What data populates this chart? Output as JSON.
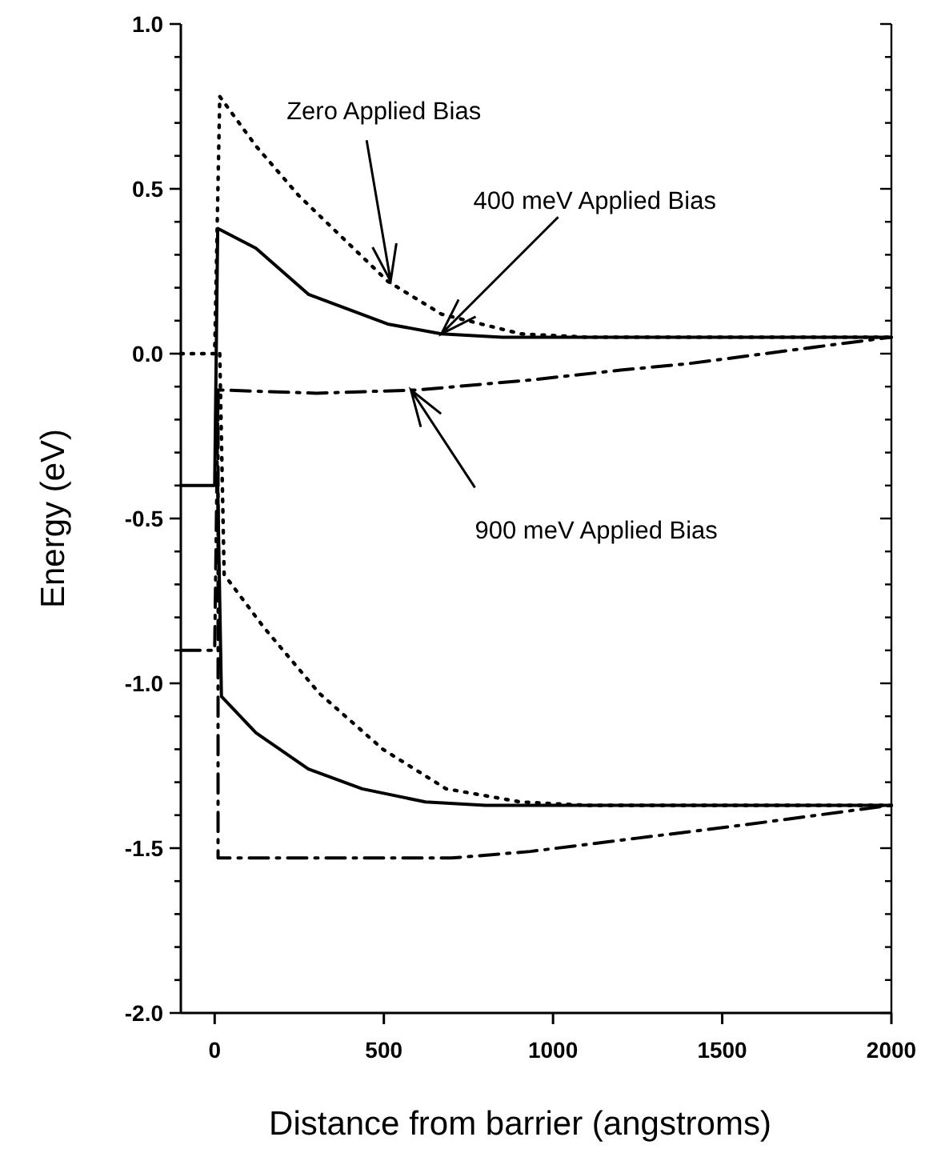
{
  "chart_data": {
    "type": "line",
    "xlabel": "Distance from barrier (angstroms)",
    "ylabel": "Energy (eV)",
    "xlim": [
      -100,
      2000
    ],
    "ylim": [
      -2,
      1
    ],
    "xticks": [
      0,
      500,
      1000,
      1500,
      2000
    ],
    "yticks": [
      {
        "value": -2,
        "label": "-2.0"
      },
      {
        "value": -1.5,
        "label": "-1.5"
      },
      {
        "value": -1,
        "label": "-1.0"
      },
      {
        "value": -0.5,
        "label": "-0.5"
      },
      {
        "value": 0,
        "label": "0.0"
      },
      {
        "value": 0.5,
        "label": "0.5"
      },
      {
        "value": 1,
        "label": "1.0"
      },
      {
        "value": -1.9,
        "label": null
      },
      {
        "value": -1.8,
        "label": null
      },
      {
        "value": -1.7,
        "label": null
      },
      {
        "value": -1.6,
        "label": null
      },
      {
        "value": -1.4,
        "label": null
      },
      {
        "value": -1.3,
        "label": null
      },
      {
        "value": -1.2,
        "label": null
      },
      {
        "value": -1.1,
        "label": null
      },
      {
        "value": -0.9,
        "label": null
      },
      {
        "value": -0.8,
        "label": null
      },
      {
        "value": -0.7,
        "label": null
      },
      {
        "value": -0.6,
        "label": null
      },
      {
        "value": -0.4,
        "label": null
      },
      {
        "value": -0.3,
        "label": null
      },
      {
        "value": -0.2,
        "label": null
      },
      {
        "value": -0.1,
        "label": null
      },
      {
        "value": 0.1,
        "label": null
      },
      {
        "value": 0.2,
        "label": null
      },
      {
        "value": 0.3,
        "label": null
      },
      {
        "value": 0.4,
        "label": null
      },
      {
        "value": 0.6,
        "label": null
      },
      {
        "value": 0.7,
        "label": null
      },
      {
        "value": 0.8,
        "label": null
      },
      {
        "value": 0.9,
        "label": null
      }
    ],
    "grid": false,
    "marker": "none",
    "series": [
      {
        "color": "#000000",
        "line_style": "dotted",
        "x": [
          -100,
          0,
          15,
          122,
          248,
          511,
          670,
          905,
          1100,
          2000
        ],
        "values": [
          0,
          0,
          0.78,
          0.63,
          0.48,
          0.22,
          0.12,
          0.06,
          0.05,
          0.05
        ]
      },
      {
        "color": "#000000",
        "line_style": "dotted",
        "x": [
          15,
          28,
          145,
          309,
          497,
          684,
          905,
          1100,
          2000
        ],
        "values": [
          0,
          -0.67,
          -0.83,
          -1.03,
          -1.2,
          -1.32,
          -1.36,
          -1.37,
          -1.37
        ]
      },
      {
        "color": "#000000",
        "line_style": "solid",
        "x": [
          -100,
          0,
          9,
          122,
          277,
          511,
          670,
          850,
          2000
        ],
        "values": [
          -0.4,
          -0.4,
          0.38,
          0.32,
          0.18,
          0.09,
          0.06,
          0.05,
          0.05
        ]
      },
      {
        "color": "#000000",
        "line_style": "solid",
        "x": [
          9,
          20,
          122,
          277,
          436,
          623,
          800,
          2000
        ],
        "values": [
          -0.4,
          -1.04,
          -1.15,
          -1.26,
          -1.32,
          -1.36,
          -1.37,
          -1.37
        ]
      },
      {
        "color": "#000000",
        "line_style": "dashed",
        "x": [
          -100,
          0,
          10,
          300,
          600,
          933,
          1200,
          1402,
          1700,
          2000
        ],
        "values": [
          -0.9,
          -0.9,
          -0.11,
          -0.12,
          -0.11,
          -0.08,
          -0.05,
          -0.03,
          0.01,
          0.05
        ]
      },
      {
        "color": "#000000",
        "line_style": "dashed",
        "x": [
          10,
          10,
          497,
          700,
          933,
          1247,
          1561,
          2000
        ],
        "values": [
          -0.11,
          -1.53,
          -1.53,
          -1.53,
          -1.51,
          -1.47,
          -1.43,
          -1.37
        ]
      }
    ],
    "annotations": [
      {
        "text": "Zero Applied Bias",
        "x": 520,
        "y": 0.22
      },
      {
        "text": "400 meV Applied Bias",
        "x": 670,
        "y": 0.06
      },
      {
        "text": "900 meV Applied Bias",
        "x": 580,
        "y": -0.11
      }
    ]
  }
}
